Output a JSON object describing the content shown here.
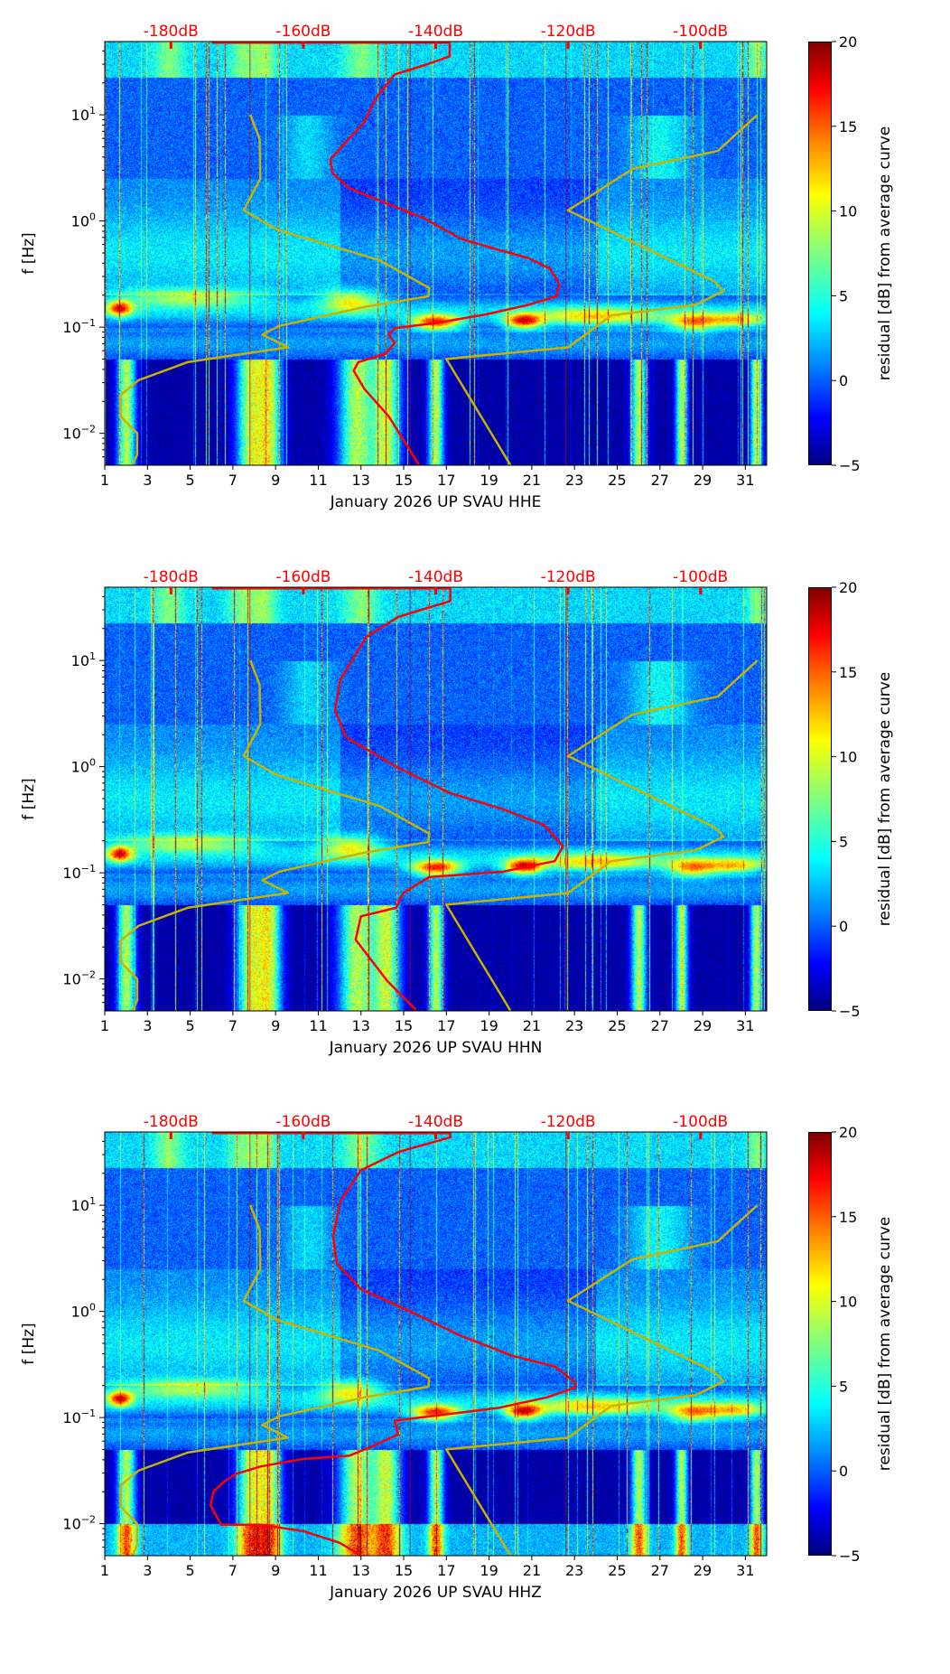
{
  "chart_data": [
    {
      "type": "heatmap",
      "title": "",
      "xlabel": "January 2026 UP SVAU  HHE",
      "ylabel": "f [Hz]"
    },
    {
      "type": "heatmap",
      "title": "",
      "xlabel": "January 2026 UP SVAU  HHN",
      "ylabel": "f [Hz]"
    },
    {
      "type": "heatmap",
      "title": "",
      "xlabel": "January 2026 UP SVAU  HHZ",
      "ylabel": "f [Hz]"
    }
  ],
  "axes": {
    "xlim": [
      1,
      32
    ],
    "x_ticks": [
      "1",
      "3",
      "5",
      "7",
      "9",
      "11",
      "13",
      "15",
      "17",
      "19",
      "21",
      "23",
      "25",
      "27",
      "29",
      "31"
    ],
    "ylim_hz": [
      0.005,
      49
    ],
    "y_ticks": [
      {
        "base": "10",
        "exp": "1",
        "log": 1
      },
      {
        "base": "10",
        "exp": "0",
        "log": 0
      },
      {
        "base": "10",
        "exp": "−1",
        "log": -1
      },
      {
        "base": "10",
        "exp": "−2",
        "log": -2
      }
    ],
    "db_lim": [
      -190,
      -90
    ],
    "db_ticks": [
      {
        "label": "-180dB",
        "v": -180
      },
      {
        "label": "-160dB",
        "v": -160
      },
      {
        "label": "-140dB",
        "v": -140
      },
      {
        "label": "-120dB",
        "v": -120
      },
      {
        "label": "-100dB",
        "v": -100
      }
    ],
    "colorbar": {
      "label": "residual [dB] from average curve",
      "range": [
        -5,
        20
      ],
      "ticks": [
        "20",
        "15",
        "10",
        "5",
        "0",
        "−5"
      ],
      "values": [
        20,
        15,
        10,
        5,
        0,
        -5
      ]
    }
  },
  "colors": {
    "red_curve": "#ff0000",
    "model_curve": "#c8b400",
    "db_label": "#ff0000"
  },
  "low_noise_model": [
    [
      -168.0,
      1.0
    ],
    [
      -166.6,
      0.77
    ],
    [
      -166.5,
      0.4
    ],
    [
      -169.0,
      0.1
    ],
    [
      -164.0,
      -0.08
    ],
    [
      -148.5,
      -0.37
    ],
    [
      -141.0,
      -0.63
    ],
    [
      -141.1,
      -0.71
    ],
    [
      -150.8,
      -0.81
    ],
    [
      -163.7,
      -0.99
    ],
    [
      -166.2,
      -1.07
    ],
    [
      -162.3,
      -1.19
    ],
    [
      -171.1,
      -1.27
    ],
    [
      -177.5,
      -1.33
    ],
    [
      -184.9,
      -1.5
    ],
    [
      -187.6,
      -1.64
    ],
    [
      -187.6,
      -1.84
    ],
    [
      -185.1,
      -2.0
    ],
    [
      -185.1,
      -2.2
    ],
    [
      -185.8,
      -2.3
    ]
  ],
  "high_noise_model": [
    [
      -91.4,
      1.0
    ],
    [
      -97.4,
      0.66
    ],
    [
      -110.3,
      0.49
    ],
    [
      -120.0,
      0.1
    ],
    [
      -97.9,
      -0.57
    ],
    [
      -96.5,
      -0.66
    ],
    [
      -100.8,
      -0.79
    ],
    [
      -113.5,
      -0.89
    ],
    [
      -120.0,
      -1.19
    ],
    [
      -138.4,
      -1.3
    ],
    [
      -128.7,
      -2.3
    ]
  ],
  "red_curves": [
    [
      [
        -173.8,
        1.68
      ],
      [
        -137.9,
        1.68
      ],
      [
        -137.9,
        1.55
      ],
      [
        -141.6,
        1.47
      ],
      [
        -146.2,
        1.38
      ],
      [
        -149,
        1.16
      ],
      [
        -150.8,
        0.93
      ],
      [
        -153.6,
        0.74
      ],
      [
        -155.9,
        0.58
      ],
      [
        -155.6,
        0.45
      ],
      [
        -153.1,
        0.31
      ],
      [
        -148.0,
        0.18
      ],
      [
        -141.6,
        0.02
      ],
      [
        -136.1,
        -0.17
      ],
      [
        -130.6,
        -0.27
      ],
      [
        -126.0,
        -0.35
      ],
      [
        -122.7,
        -0.45
      ],
      [
        -121.3,
        -0.6
      ],
      [
        -121.8,
        -0.71
      ],
      [
        -126.0,
        -0.79
      ],
      [
        -132.4,
        -0.88
      ],
      [
        -139.8,
        -0.96
      ],
      [
        -146.2,
        -1.01
      ],
      [
        -147.1,
        -1.07
      ],
      [
        -146.2,
        -1.15
      ],
      [
        -147.6,
        -1.25
      ],
      [
        -151.7,
        -1.33
      ],
      [
        -152.4,
        -1.41
      ],
      [
        -150.8,
        -1.58
      ],
      [
        -147.1,
        -1.84
      ],
      [
        -142.5,
        -2.3
      ]
    ],
    [
      [
        -173.8,
        1.68
      ],
      [
        -137.8,
        1.68
      ],
      [
        -137.8,
        1.56
      ],
      [
        -145.7,
        1.41
      ],
      [
        -150.5,
        1.22
      ],
      [
        -154.4,
        0.82
      ],
      [
        -155.2,
        0.53
      ],
      [
        -153.6,
        0.28
      ],
      [
        -145.7,
        -0.01
      ],
      [
        -137.8,
        -0.25
      ],
      [
        -129.9,
        -0.4
      ],
      [
        -123.6,
        -0.55
      ],
      [
        -120.8,
        -0.75
      ],
      [
        -122,
        -0.89
      ],
      [
        -129.9,
        -0.99
      ],
      [
        -141,
        -1.04
      ],
      [
        -144.9,
        -1.19
      ],
      [
        -146,
        -1.33
      ],
      [
        -151.3,
        -1.41
      ],
      [
        -152.1,
        -1.63
      ],
      [
        -147.3,
        -2.02
      ],
      [
        -143,
        -2.29
      ]
    ],
    [
      [
        -173.8,
        1.68
      ],
      [
        -137.8,
        1.68
      ],
      [
        -137.8,
        1.64
      ],
      [
        -145.7,
        1.5
      ],
      [
        -151.3,
        1.33
      ],
      [
        -154.4,
        1.04
      ],
      [
        -155.5,
        0.7
      ],
      [
        -154.9,
        0.45
      ],
      [
        -151.3,
        0.21
      ],
      [
        -144.2,
        0.01
      ],
      [
        -136.2,
        -0.23
      ],
      [
        -128.3,
        -0.42
      ],
      [
        -122,
        -0.52
      ],
      [
        -118.9,
        -0.67
      ],
      [
        -119.0,
        -0.72
      ],
      [
        -123.2,
        -0.81
      ],
      [
        -130.6,
        -0.91
      ],
      [
        -139.8,
        -0.98
      ],
      [
        -146.2,
        -1.03
      ],
      [
        -145.7,
        -1.16
      ],
      [
        -149.9,
        -1.28
      ],
      [
        -153.1,
        -1.36
      ],
      [
        -160.0,
        -1.39
      ],
      [
        -166.4,
        -1.46
      ],
      [
        -170.1,
        -1.53
      ],
      [
        -171.9,
        -1.6
      ],
      [
        -173.6,
        -1.7
      ],
      [
        -174.0,
        -1.83
      ],
      [
        -172.4,
        -2.01
      ],
      [
        -166.4,
        -2.01
      ],
      [
        -160.0,
        -2.07
      ],
      [
        -154.5,
        -2.18
      ],
      [
        -151.3,
        -2.3
      ]
    ]
  ]
}
